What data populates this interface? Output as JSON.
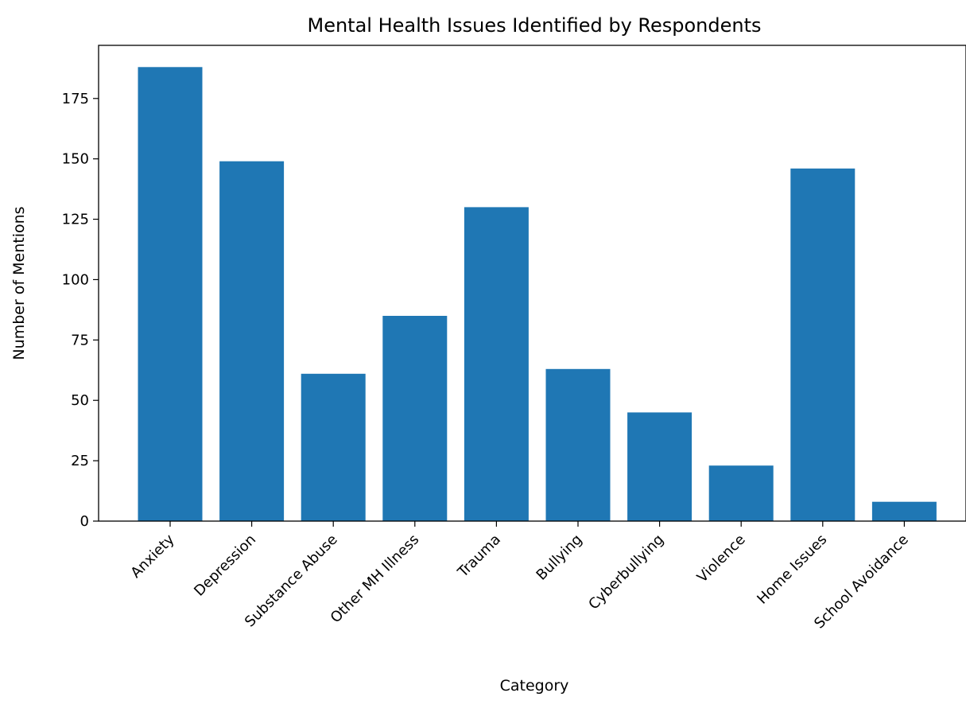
{
  "chart_data": {
    "type": "bar",
    "title": "Mental Health Issues Identified by Respondents",
    "xlabel": "Category",
    "ylabel": "Number of Mentions",
    "categories": [
      "Anxiety",
      "Depression",
      "Substance Abuse",
      "Other MH Illness",
      "Trauma",
      "Bullying",
      "Cyberbullying",
      "Violence",
      "Home Issues",
      "School Avoidance"
    ],
    "values": [
      188,
      149,
      61,
      85,
      130,
      63,
      45,
      23,
      146,
      8
    ],
    "ylim": [
      0,
      197
    ],
    "yticks": [
      0,
      25,
      50,
      75,
      100,
      125,
      150,
      175
    ],
    "grid": false,
    "bar_color": "#1f77b4"
  }
}
